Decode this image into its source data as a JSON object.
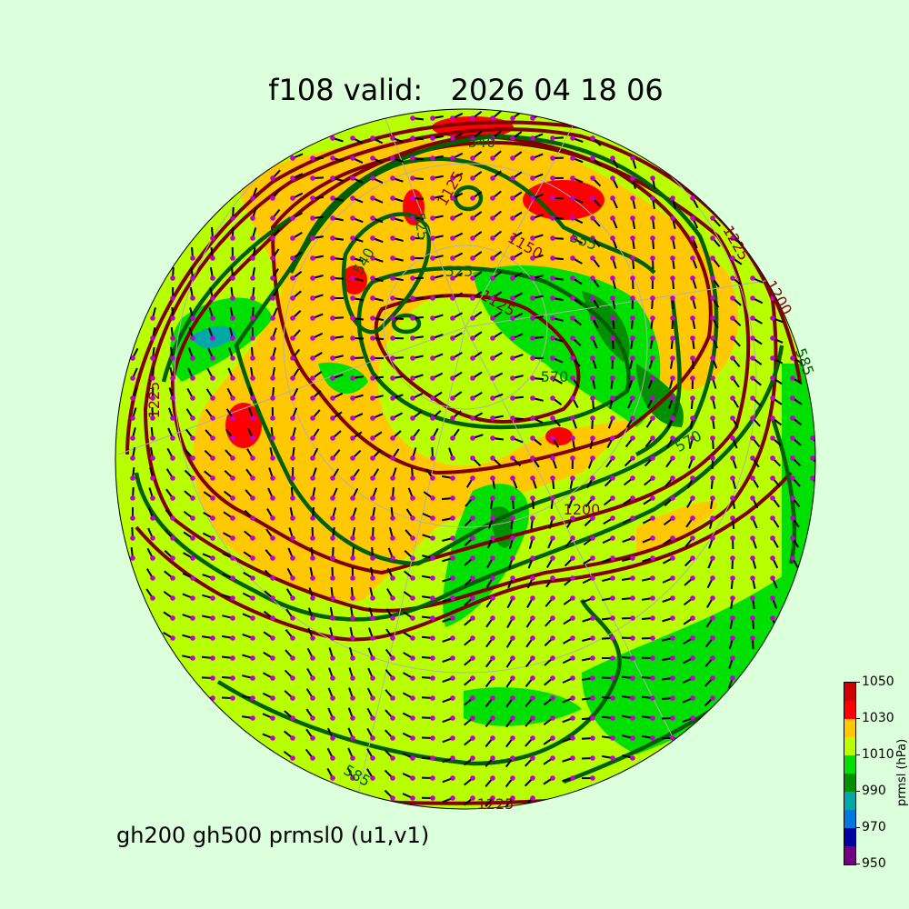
{
  "title": "f108 valid:   2026 04 18 06",
  "subtitle": "gh200 gh500 prmsl0 (u1,v1)",
  "colorbar": {
    "label": "prmsl (hPa)",
    "ticks": [
      "950",
      "970",
      "990",
      "1010",
      "1030",
      "1050"
    ],
    "levels": [
      950,
      960,
      970,
      980,
      990,
      1000,
      1010,
      1020,
      1030,
      1040,
      1050
    ],
    "colors": [
      "#700080",
      "#0000a0",
      "#0078e0",
      "#00a8a8",
      "#009000",
      "#00e000",
      "#b8ff00",
      "#ffc800",
      "#ff0000",
      "#d00000"
    ]
  },
  "contour_colors": {
    "gh500": "#006000",
    "gh200": "#800000"
  },
  "contour_labels": {
    "gh500": [
      "540",
      "525",
      "540",
      "525",
      "555",
      "570",
      "585",
      "585",
      "570"
    ],
    "gh200": [
      "1125",
      "1150",
      "1125",
      "1200",
      "1225",
      "1200",
      "1225",
      "1225"
    ]
  },
  "background_color": "#dcffdc"
}
